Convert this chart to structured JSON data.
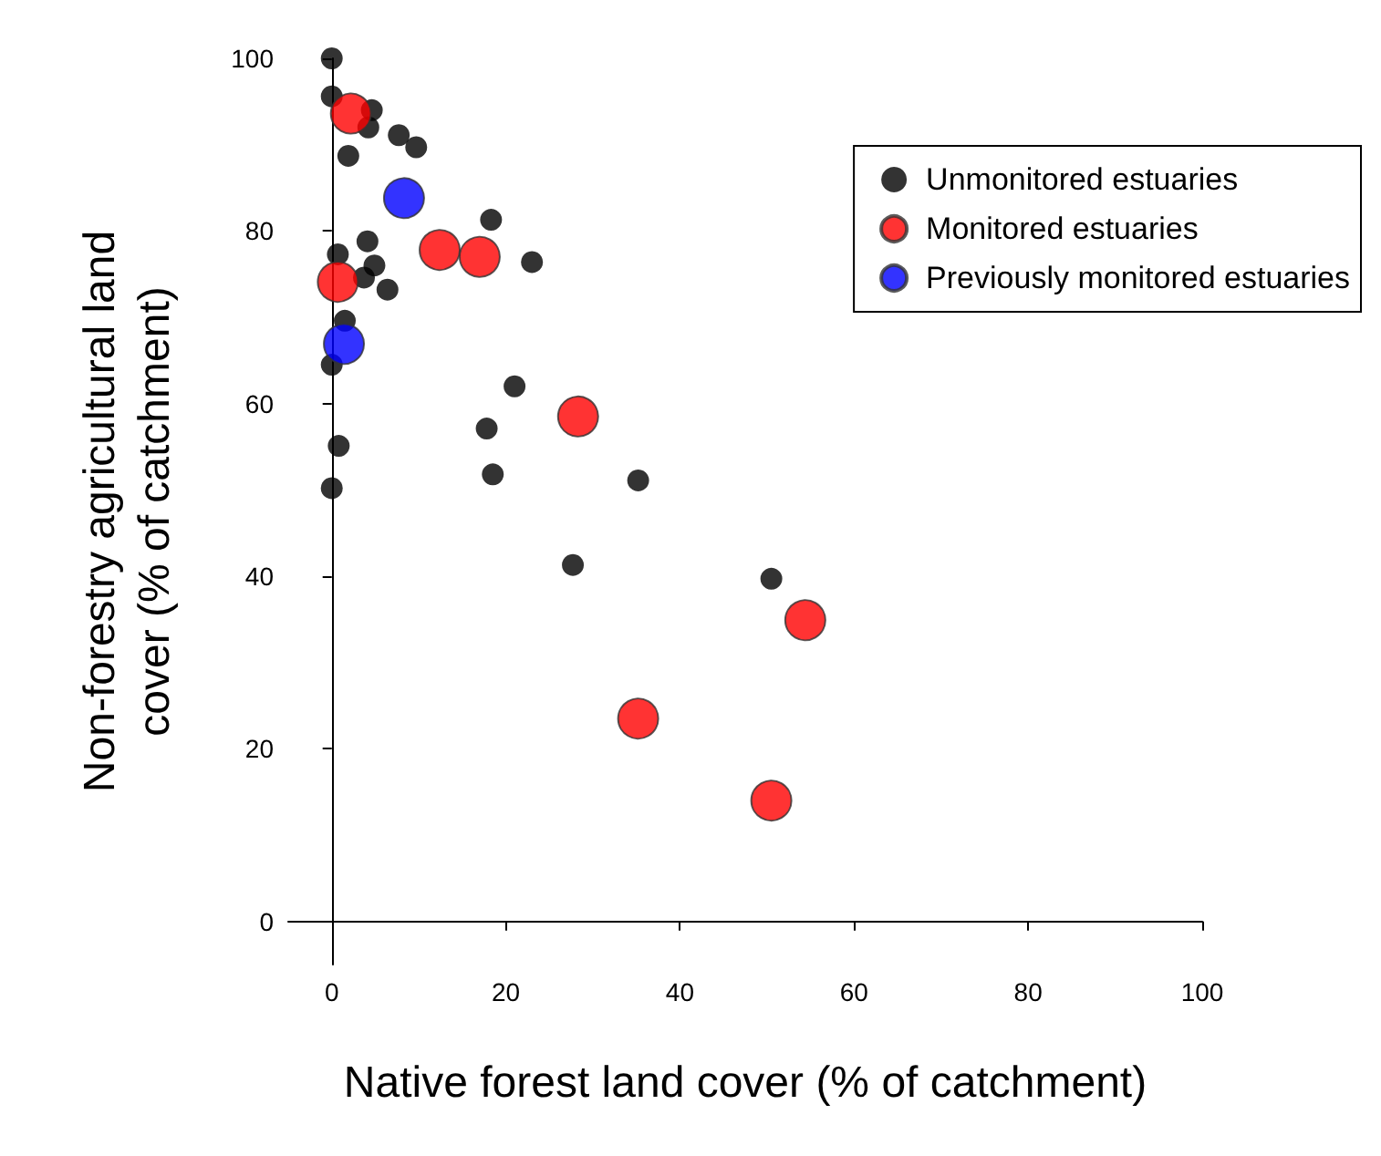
{
  "chart_data": {
    "type": "scatter",
    "xlabel": "Native forest land cover (% of catchment)",
    "ylabel": "Non-forestry agricultural land\ncover (% of catchment)",
    "xlim": [
      -5,
      100
    ],
    "ylim": [
      -5,
      100
    ],
    "xticks": [
      0,
      20,
      40,
      60,
      80,
      100
    ],
    "yticks": [
      0,
      20,
      40,
      60,
      80,
      100
    ],
    "legend": "top right",
    "marker": "circle",
    "series": [
      {
        "name": "Unmonitored estuaries",
        "color": "#000000",
        "x": [
          0,
          0,
          4.6,
          4.2,
          7.7,
          9.7,
          1.9,
          18.3,
          23,
          4.1,
          0.7,
          4.9,
          6.4,
          3.7,
          1.5,
          0,
          0.8,
          0,
          21,
          17.8,
          18.5,
          35.2,
          27.7,
          50.5
        ],
        "values": [
          100,
          95.6,
          94,
          92,
          91.1,
          89.7,
          88.7,
          81.3,
          76.4,
          78.8,
          77.3,
          76,
          73.2,
          74.6,
          69.6,
          64.5,
          55.1,
          50.2,
          62,
          57.1,
          51.8,
          51.1,
          41.3,
          39.7
        ]
      },
      {
        "name": "Monitored estuaries",
        "color": "#ff0000",
        "x": [
          2.2,
          12.4,
          17,
          0.7,
          28.3,
          54.4,
          35.2,
          50.5
        ],
        "values": [
          93.6,
          77.8,
          77,
          74.1,
          58.5,
          34.9,
          23.5,
          14
        ]
      },
      {
        "name": "Previously monitored estuaries",
        "color": "#0000ff",
        "x": [
          8.3,
          1.4
        ],
        "values": [
          83.8,
          66.9
        ]
      }
    ]
  }
}
